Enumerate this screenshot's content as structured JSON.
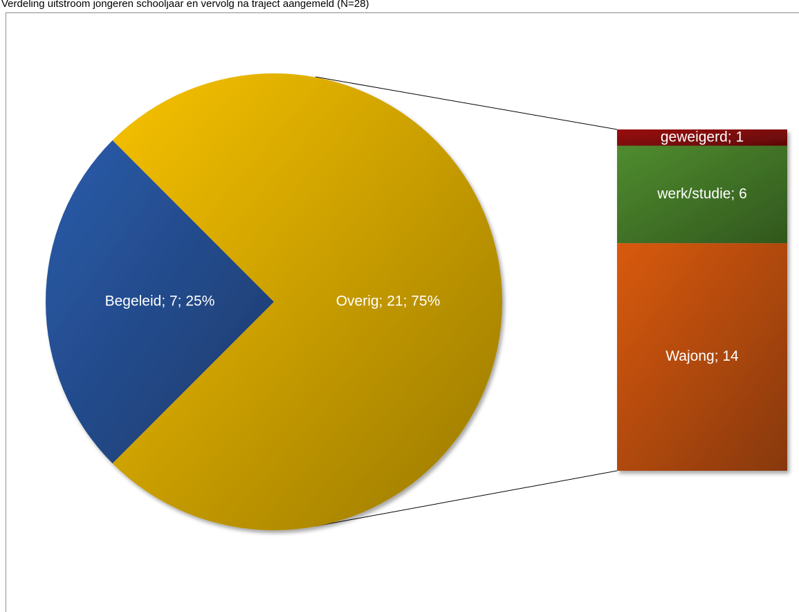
{
  "chart_data": {
    "type": "pie-of-bar",
    "title": "Verdeling uitstroom jongeren schooljaar en vervolg na traject aangemeld (N=28)",
    "pie": {
      "categories": [
        "Begeleid",
        "Overig"
      ],
      "values": [
        7,
        21
      ],
      "value_labels": [
        "Begeleid; 7; 25%",
        "Overig; 21; 75%"
      ],
      "colors": [
        "#2b5cab",
        "#f7c200"
      ]
    },
    "bar": {
      "categories": [
        "geweigerd",
        "werk/studie",
        "Wajong"
      ],
      "values": [
        1,
        6,
        14
      ],
      "value_labels": [
        "geweigerd; 1",
        "werk/studie; 6",
        "Wajong; 14"
      ],
      "colors": [
        "#9a0a0a",
        "#4f8c2f",
        "#d95a0c"
      ]
    }
  }
}
